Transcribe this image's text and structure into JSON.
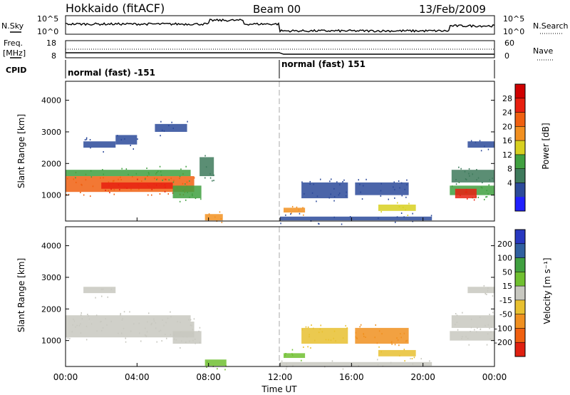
{
  "header": {
    "station": "Hokkaido (fitACF)",
    "beam": "Beam 00",
    "date": "13/Feb/2009"
  },
  "top_panels": {
    "nsky_label": "N.Sky",
    "nsearch_label": "N.Search",
    "count_ticks": [
      "10^5",
      "10^0"
    ],
    "freq_label_line1": "Freq.",
    "freq_label_line2": "[MHz]",
    "freq_ticks": [
      "18",
      "8"
    ],
    "nave_label": "Nave",
    "nave_ticks": [
      "60",
      "0"
    ],
    "cpid_label": "CPID",
    "cpid_segments": [
      {
        "text": "normal (fast) -151",
        "start_hour": 0,
        "end_hour": 12
      },
      {
        "text": "normal (fast) 151",
        "start_hour": 12,
        "end_hour": 24
      }
    ]
  },
  "x_axis": {
    "label": "Time UT",
    "ticks": [
      "00:00",
      "04:00",
      "08:00",
      "12:00",
      "16:00",
      "20:00",
      "00:00"
    ]
  },
  "power_panel": {
    "ylabel": "Slant Range [km]",
    "yticks": [
      "4000",
      "3000",
      "2000",
      "1000"
    ],
    "colorbar_label": "Power [dB]",
    "colorbar_ticks": [
      "28",
      "24",
      "20",
      "16",
      "12",
      "8",
      "4"
    ],
    "colors": [
      "#2020ff",
      "#2c4a9a",
      "#3e7a5c",
      "#40a040",
      "#d8d020",
      "#f29020",
      "#f06010",
      "#e82010",
      "#d00000"
    ]
  },
  "velocity_panel": {
    "ylabel": "Slant Range [km]",
    "yticks": [
      "4000",
      "3000",
      "2000",
      "1000"
    ],
    "colorbar_label": "Velocity [m s⁻¹]",
    "colorbar_ticks": [
      "200",
      "100",
      "50",
      "15",
      "-15",
      "-50",
      "-100",
      "-200"
    ],
    "colors": [
      "#2838c0",
      "#3060a0",
      "#40a040",
      "#70c030",
      "#c8c8c0",
      "#e8c030",
      "#f09020",
      "#f06010",
      "#e02010"
    ]
  },
  "chart_data": [
    {
      "type": "heatmap",
      "title": "Power",
      "x_unit": "hour UT",
      "y_unit": "km",
      "xlim": [
        0,
        24
      ],
      "ylim": [
        180,
        4600
      ],
      "value_range": [
        0,
        30
      ],
      "regions": [
        {
          "t0": 0.0,
          "t1": 7.2,
          "r0": 1100,
          "r1": 1600,
          "value": 20
        },
        {
          "t0": 2.0,
          "t1": 6.0,
          "r0": 1200,
          "r1": 1400,
          "value": 26
        },
        {
          "t0": 0.0,
          "t1": 7.0,
          "r0": 1600,
          "r1": 1800,
          "value": 10
        },
        {
          "t0": 1.0,
          "t1": 2.8,
          "r0": 2500,
          "r1": 2700,
          "value": 4
        },
        {
          "t0": 2.8,
          "t1": 4.0,
          "r0": 2600,
          "r1": 2900,
          "value": 5
        },
        {
          "t0": 5.0,
          "t1": 6.8,
          "r0": 3000,
          "r1": 3250,
          "value": 4
        },
        {
          "t0": 6.0,
          "t1": 7.6,
          "r0": 900,
          "r1": 1300,
          "value": 10
        },
        {
          "t0": 7.5,
          "t1": 8.3,
          "r0": 1600,
          "r1": 2200,
          "value": 8
        },
        {
          "t0": 7.8,
          "t1": 8.8,
          "r0": 200,
          "r1": 400,
          "value": 18
        },
        {
          "t0": 12.2,
          "t1": 13.4,
          "r0": 450,
          "r1": 600,
          "value": 18
        },
        {
          "t0": 13.2,
          "t1": 15.8,
          "r0": 900,
          "r1": 1400,
          "value": 4
        },
        {
          "t0": 16.2,
          "t1": 19.2,
          "r0": 1000,
          "r1": 1400,
          "value": 5
        },
        {
          "t0": 17.5,
          "t1": 19.6,
          "r0": 500,
          "r1": 700,
          "value": 14
        },
        {
          "t0": 12.0,
          "t1": 20.5,
          "r0": 200,
          "r1": 320,
          "value": 6
        },
        {
          "t0": 21.5,
          "t1": 24.0,
          "r0": 1000,
          "r1": 1300,
          "value": 12
        },
        {
          "t0": 21.8,
          "t1": 23.0,
          "r0": 900,
          "r1": 1200,
          "value": 26
        },
        {
          "t0": 21.6,
          "t1": 24.0,
          "r0": 1400,
          "r1": 1800,
          "value": 8
        },
        {
          "t0": 22.5,
          "t1": 24.0,
          "r0": 2500,
          "r1": 2700,
          "value": 4
        }
      ]
    },
    {
      "type": "heatmap",
      "title": "Velocity",
      "x_unit": "hour UT",
      "y_unit": "km",
      "xlim": [
        0,
        24
      ],
      "ylim": [
        180,
        4600
      ],
      "value_range": [
        -200,
        200
      ],
      "regions": [
        {
          "t0": 0.0,
          "t1": 7.2,
          "r0": 1100,
          "r1": 1600,
          "value": 0
        },
        {
          "t0": 0.0,
          "t1": 7.0,
          "r0": 1600,
          "r1": 1800,
          "value": 0
        },
        {
          "t0": 1.0,
          "t1": 2.8,
          "r0": 2500,
          "r1": 2700,
          "value": 0
        },
        {
          "t0": 6.0,
          "t1": 7.6,
          "r0": 900,
          "r1": 1300,
          "value": 0
        },
        {
          "t0": 7.8,
          "t1": 9.0,
          "r0": 200,
          "r1": 400,
          "value": 30
        },
        {
          "t0": 12.2,
          "t1": 13.4,
          "r0": 450,
          "r1": 600,
          "value": 40
        },
        {
          "t0": 13.2,
          "t1": 15.8,
          "r0": 900,
          "r1": 1400,
          "value": -40
        },
        {
          "t0": 16.2,
          "t1": 19.2,
          "r0": 900,
          "r1": 1400,
          "value": -70
        },
        {
          "t0": 17.5,
          "t1": 19.6,
          "r0": 500,
          "r1": 700,
          "value": -60
        },
        {
          "t0": 12.0,
          "t1": 20.5,
          "r0": 200,
          "r1": 320,
          "value": -20
        },
        {
          "t0": 21.5,
          "t1": 24.0,
          "r0": 1000,
          "r1": 1300,
          "value": 0
        },
        {
          "t0": 21.6,
          "t1": 24.0,
          "r0": 1400,
          "r1": 1800,
          "value": 20
        },
        {
          "t0": 22.5,
          "t1": 24.0,
          "r0": 2500,
          "r1": 2700,
          "value": 0
        }
      ]
    }
  ]
}
